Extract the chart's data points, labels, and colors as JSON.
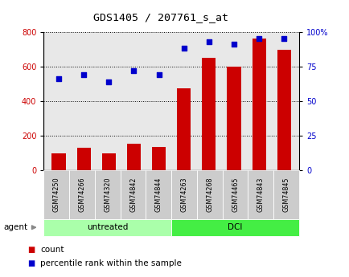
{
  "title": "GDS1405 / 207761_s_at",
  "samples": [
    "GSM74250",
    "GSM74266",
    "GSM74320",
    "GSM74842",
    "GSM74844",
    "GSM74263",
    "GSM74268",
    "GSM74465",
    "GSM74843",
    "GSM74845"
  ],
  "counts": [
    100,
    130,
    100,
    155,
    135,
    475,
    650,
    600,
    760,
    695
  ],
  "percentile_ranks": [
    66,
    69,
    64,
    72,
    69,
    88,
    93,
    91,
    95,
    95
  ],
  "groups": [
    {
      "label": "untreated",
      "indices": [
        0,
        1,
        2,
        3,
        4
      ],
      "color": "#aaffaa"
    },
    {
      "label": "DCI",
      "indices": [
        5,
        6,
        7,
        8,
        9
      ],
      "color": "#44ee44"
    }
  ],
  "group_label": "agent",
  "bar_color": "#cc0000",
  "dot_color": "#0000cc",
  "left_axis_color": "#cc0000",
  "right_axis_color": "#0000cc",
  "left_ylim": [
    0,
    800
  ],
  "right_ylim": [
    0,
    100
  ],
  "left_yticks": [
    0,
    200,
    400,
    600,
    800
  ],
  "right_yticks": [
    0,
    25,
    50,
    75,
    100
  ],
  "right_yticklabels": [
    "0",
    "25",
    "50",
    "75",
    "100%"
  ],
  "bg_color": "#ffffff",
  "plot_bg_color": "#e8e8e8",
  "legend_count_label": "count",
  "legend_pct_label": "percentile rank within the sample"
}
